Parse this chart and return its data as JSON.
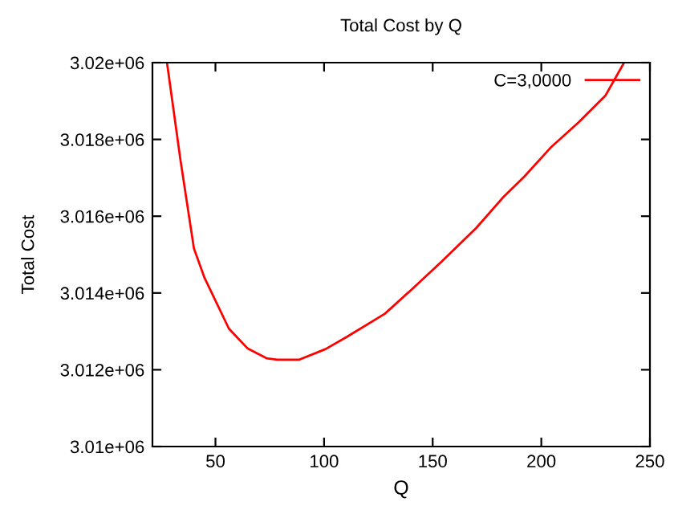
{
  "chart_data": {
    "type": "line",
    "title": "Total Cost by Q",
    "xlabel": "Q",
    "ylabel": "Total Cost",
    "series": [
      {
        "name": "C=3,0000",
        "color": "#ff0000",
        "x": [
          27.7,
          33.9,
          40.1,
          45.0,
          56.2,
          64.9,
          73.5,
          78.5,
          88.4,
          100.7,
          110.6,
          128,
          140.3,
          154,
          170,
          182.4,
          192.3,
          204.7,
          217.1,
          229.5,
          238.1
        ],
        "values": [
          3020000,
          3017460,
          3015160,
          3014390,
          3013070,
          3012550,
          3012300,
          3012260,
          3012260,
          3012540,
          3012860,
          3013460,
          3014090,
          3014810,
          3015690,
          3016490,
          3017040,
          3017810,
          3018440,
          3019140,
          3020000
        ]
      }
    ],
    "xlim": [
      21,
      250
    ],
    "ylim": [
      3010000,
      3020000
    ],
    "xticks": [
      50,
      100,
      150,
      200,
      250
    ],
    "yticks": [
      {
        "value": 3010000,
        "label": "3.01e+06"
      },
      {
        "value": 3012000,
        "label": "3.012e+06"
      },
      {
        "value": 3014000,
        "label": "3.014e+06"
      },
      {
        "value": 3016000,
        "label": "3.016e+06"
      },
      {
        "value": 3018000,
        "label": "3.018e+06"
      },
      {
        "value": 3020000,
        "label": "3.02e+06"
      }
    ],
    "grid": false,
    "legend": "top right",
    "marker": "none",
    "line_style": "solid"
  }
}
